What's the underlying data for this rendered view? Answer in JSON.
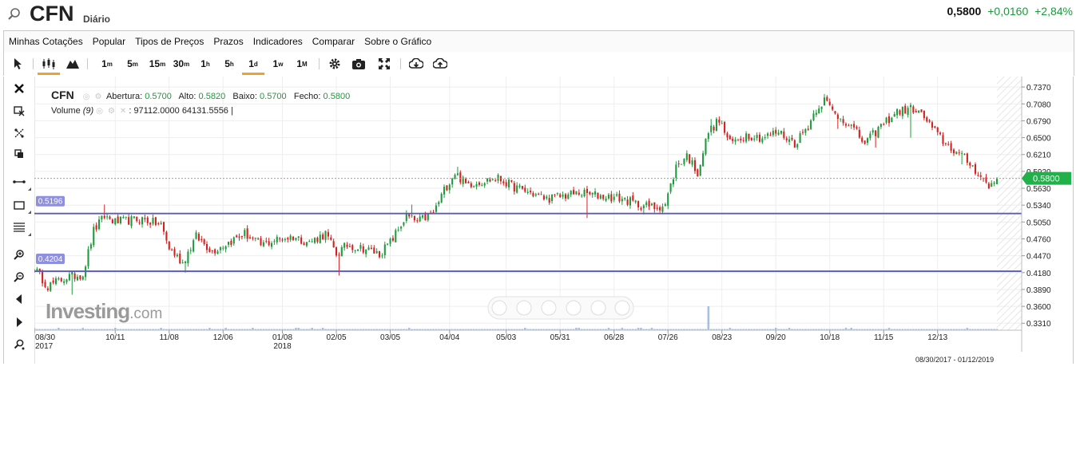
{
  "header": {
    "symbol": "CFN",
    "period": "Diário",
    "last": "0,5800",
    "change": "+0,0160",
    "change_pct": "+2,84%"
  },
  "menu": [
    "Minhas Cotações",
    "Popular",
    "Tipos de Preços",
    "Prazos",
    "Indicadores",
    "Comparar",
    "Sobre o Gráfico"
  ],
  "toolbar": {
    "intervals": [
      {
        "num": "1",
        "unit": "m"
      },
      {
        "num": "5",
        "unit": "m"
      },
      {
        "num": "15",
        "unit": "m"
      },
      {
        "num": "30",
        "unit": "m"
      },
      {
        "num": "1",
        "unit": "h"
      },
      {
        "num": "5",
        "unit": "h"
      },
      {
        "num": "1",
        "unit": "d"
      },
      {
        "num": "1",
        "unit": "w"
      },
      {
        "num": "1",
        "unit": "M"
      }
    ],
    "active_interval": "1d",
    "active_chart_type": "candles"
  },
  "legend": {
    "symbol": "CFN",
    "open_label": "Abertura:",
    "open": "0.5700",
    "high_label": "Alto:",
    "high": "0.5820",
    "low_label": "Baixo:",
    "low": "0.5700",
    "close_label": "Fecho:",
    "close": "0.5800",
    "volume_label": "Volume",
    "volume_param": "(9)",
    "volume_value": "97112.0000",
    "volume_ma": "64131.5556"
  },
  "watermark": {
    "brand": "Investing",
    "suffix": ".com"
  },
  "date_range": "08/30/2017 - 01/12/2019",
  "colors": {
    "up": "#1e9b3c",
    "down": "#d61f1f",
    "hline": "#5b5bb8",
    "hline_label_bg": "#8f8fe0",
    "price_tag": "#22b04a"
  },
  "chart_data": {
    "type": "candlestick",
    "y_ticks": [
      "0.7370",
      "0.7080",
      "0.6790",
      "0.6500",
      "0.6210",
      "0.5920",
      "0.5630",
      "0.5340",
      "0.5050",
      "0.4760",
      "0.4470",
      "0.4180",
      "0.3890",
      "0.3600",
      "0.3310"
    ],
    "ylim": [
      0.319,
      0.755
    ],
    "x_labels": [
      {
        "label": "08/30",
        "sub": "2017",
        "i": 0
      },
      {
        "label": "10/11",
        "sub": "",
        "i": 30
      },
      {
        "label": "11/08",
        "sub": "",
        "i": 50
      },
      {
        "label": "12/06",
        "sub": "",
        "i": 70
      },
      {
        "label": "01/08",
        "sub": "2018",
        "i": 92
      },
      {
        "label": "02/05",
        "sub": "",
        "i": 112
      },
      {
        "label": "03/05",
        "sub": "",
        "i": 132
      },
      {
        "label": "04/04",
        "sub": "",
        "i": 154
      },
      {
        "label": "05/03",
        "sub": "",
        "i": 175
      },
      {
        "label": "05/31",
        "sub": "",
        "i": 195
      },
      {
        "label": "06/28",
        "sub": "",
        "i": 215
      },
      {
        "label": "07/26",
        "sub": "",
        "i": 235
      },
      {
        "label": "08/23",
        "sub": "",
        "i": 255
      },
      {
        "label": "09/20",
        "sub": "",
        "i": 275
      },
      {
        "label": "10/18",
        "sub": "",
        "i": 295
      },
      {
        "label": "11/15",
        "sub": "",
        "i": 315
      },
      {
        "label": "12/13",
        "sub": "",
        "i": 335
      }
    ],
    "anchors": [
      [
        0,
        0.425
      ],
      [
        5,
        0.395
      ],
      [
        12,
        0.41
      ],
      [
        18,
        0.415
      ],
      [
        22,
        0.49
      ],
      [
        26,
        0.515
      ],
      [
        30,
        0.505
      ],
      [
        40,
        0.51
      ],
      [
        47,
        0.5
      ],
      [
        50,
        0.46
      ],
      [
        55,
        0.435
      ],
      [
        60,
        0.48
      ],
      [
        66,
        0.455
      ],
      [
        72,
        0.47
      ],
      [
        78,
        0.485
      ],
      [
        84,
        0.465
      ],
      [
        90,
        0.475
      ],
      [
        96,
        0.48
      ],
      [
        102,
        0.47
      ],
      [
        108,
        0.485
      ],
      [
        112,
        0.45
      ],
      [
        116,
        0.465
      ],
      [
        122,
        0.46
      ],
      [
        128,
        0.45
      ],
      [
        132,
        0.47
      ],
      [
        138,
        0.515
      ],
      [
        142,
        0.505
      ],
      [
        148,
        0.52
      ],
      [
        152,
        0.56
      ],
      [
        156,
        0.59
      ],
      [
        160,
        0.57
      ],
      [
        166,
        0.575
      ],
      [
        172,
        0.58
      ],
      [
        178,
        0.565
      ],
      [
        184,
        0.555
      ],
      [
        190,
        0.545
      ],
      [
        196,
        0.55
      ],
      [
        202,
        0.555
      ],
      [
        210,
        0.55
      ],
      [
        218,
        0.545
      ],
      [
        224,
        0.535
      ],
      [
        230,
        0.53
      ],
      [
        234,
        0.535
      ],
      [
        238,
        0.6
      ],
      [
        242,
        0.62
      ],
      [
        246,
        0.59
      ],
      [
        250,
        0.66
      ],
      [
        254,
        0.68
      ],
      [
        258,
        0.64
      ],
      [
        264,
        0.655
      ],
      [
        270,
        0.65
      ],
      [
        276,
        0.66
      ],
      [
        282,
        0.64
      ],
      [
        287,
        0.67
      ],
      [
        290,
        0.7
      ],
      [
        293,
        0.715
      ],
      [
        297,
        0.69
      ],
      [
        302,
        0.675
      ],
      [
        308,
        0.64
      ],
      [
        314,
        0.67
      ],
      [
        320,
        0.695
      ],
      [
        326,
        0.7
      ],
      [
        330,
        0.685
      ],
      [
        334,
        0.66
      ],
      [
        338,
        0.64
      ],
      [
        342,
        0.625
      ],
      [
        346,
        0.61
      ],
      [
        350,
        0.59
      ],
      [
        354,
        0.565
      ],
      [
        357,
        0.58
      ]
    ],
    "final_bar": {
      "open": 0.57,
      "high": 0.582,
      "low": 0.57,
      "close": 0.58
    },
    "spikes": [
      {
        "i": 26,
        "high": 0.535
      },
      {
        "i": 14,
        "low": 0.38
      },
      {
        "i": 56,
        "low": 0.418
      },
      {
        "i": 113,
        "low": 0.413
      },
      {
        "i": 140,
        "high": 0.535
      },
      {
        "i": 157,
        "high": 0.6
      },
      {
        "i": 205,
        "low": 0.512
      },
      {
        "i": 226,
        "low": 0.518
      },
      {
        "i": 251,
        "high": 0.682
      },
      {
        "i": 293,
        "high": 0.725
      },
      {
        "i": 298,
        "low": 0.665
      },
      {
        "i": 312,
        "low": 0.633
      },
      {
        "i": 325,
        "low": 0.65
      },
      {
        "i": 344,
        "low": 0.604
      }
    ],
    "n_bars": 358,
    "horizontal_lines": [
      {
        "value": 0.5196,
        "label": "0.5196"
      },
      {
        "value": 0.4204,
        "label": "0.4204"
      }
    ],
    "last_price": {
      "value": 0.58,
      "label": "0.5800"
    },
    "volume_spike_at": 250
  }
}
